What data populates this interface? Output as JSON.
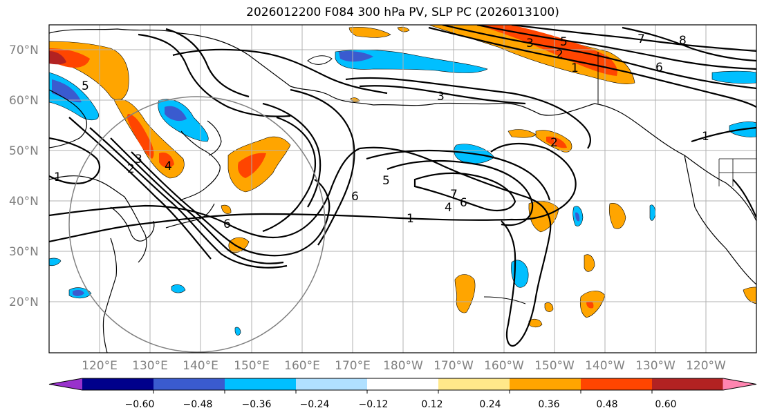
{
  "title": "2026012200 F084 300 hPa PV, SLP PC (2026013100)",
  "lat_labels": [
    "70°N",
    "60°N",
    "50°N",
    "40°N",
    "30°N",
    "20°N"
  ],
  "lon_labels": [
    "120°E",
    "130°E",
    "140°E",
    "150°E",
    "160°E",
    "170°E",
    "180°W",
    "170°W",
    "160°W",
    "150°W",
    "140°W",
    "130°W",
    "120°W"
  ],
  "colorbar": {
    "colors": [
      "#9932cc",
      "#00008b",
      "#3a5bcf",
      "#00bfff",
      "#b0e0ff",
      "#ffffff",
      "#ffe88a",
      "#ffa500",
      "#ff4500",
      "#b22222",
      "#ff85b0"
    ],
    "tick_labels": [
      "−0.60",
      "−0.48",
      "−0.36",
      "−0.24",
      "−0.12",
      "0.12",
      "0.24",
      "0.36",
      "0.48",
      "0.60"
    ]
  },
  "contour_labels": [
    "5",
    "4",
    "3",
    "2",
    "1",
    "6",
    "7",
    "8",
    "6",
    "3",
    "5",
    "3",
    "2",
    "1",
    "5",
    "6",
    "1",
    "2",
    "7",
    "4",
    "6",
    "1"
  ]
}
